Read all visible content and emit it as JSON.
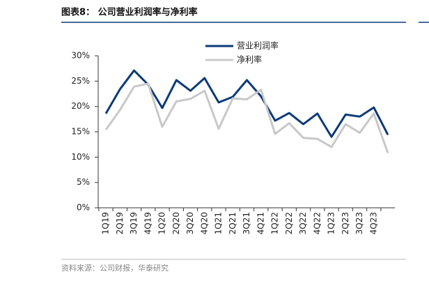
{
  "chart_data": {
    "type": "line",
    "title": "图表8： 公司营业利润率与净利率",
    "source": "资料来源：公司财报，华泰研究",
    "categories": [
      "1Q19",
      "2Q19",
      "3Q19",
      "4Q19",
      "1Q20",
      "2Q20",
      "3Q20",
      "4Q20",
      "1Q21",
      "2Q21",
      "3Q21",
      "4Q21",
      "1Q22",
      "2Q22",
      "3Q22",
      "4Q22",
      "1Q23",
      "2Q23",
      "3Q23",
      "4Q23",
      null
    ],
    "series": [
      {
        "name": "营业利润率",
        "color": "#0c3a7a",
        "values": [
          18.6,
          23.4,
          27.1,
          24.3,
          19.7,
          25.2,
          23.1,
          25.6,
          20.8,
          21.9,
          25.2,
          22.0,
          17.2,
          18.7,
          16.5,
          18.6,
          14.0,
          18.4,
          18.0,
          19.8,
          14.4
        ]
      },
      {
        "name": "净利率",
        "color": "#c8c8c8",
        "values": [
          15.4,
          19.3,
          23.9,
          24.5,
          16.0,
          21.0,
          21.5,
          23.1,
          15.6,
          21.6,
          21.4,
          23.3,
          14.6,
          16.7,
          13.8,
          13.6,
          12.0,
          16.5,
          14.8,
          18.6,
          10.8
        ]
      }
    ],
    "ylim": [
      0,
      30
    ],
    "yticks": [
      {
        "value": 0,
        "label": "0%"
      },
      {
        "value": 5,
        "label": "5%"
      },
      {
        "value": 10,
        "label": "10%"
      },
      {
        "value": 15,
        "label": "15%"
      },
      {
        "value": 20,
        "label": "20%"
      },
      {
        "value": 25,
        "label": "25%"
      },
      {
        "value": 30,
        "label": "30%"
      }
    ],
    "legend": "top"
  }
}
